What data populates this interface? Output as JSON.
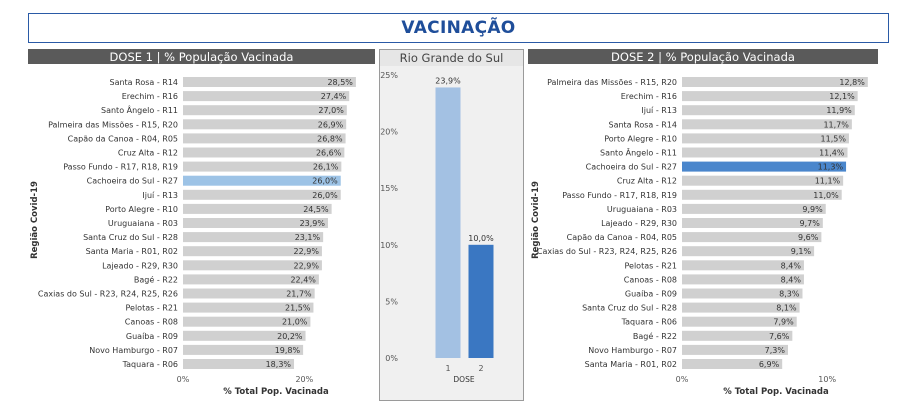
{
  "page_title": "VACINAÇÃO",
  "colors": {
    "bar": "#d0d0d0",
    "highlight": "#9dc3e6",
    "highlight2": "#4a86cc",
    "dose1": "#a3c1e3",
    "dose2": "#3a77c2",
    "header_bg": "#5a5a5a",
    "title": "#1f4e9a"
  },
  "left_header": "DOSE 1 | % População Vacinada",
  "middle_header": "Rio Grande do Sul",
  "right_header": "DOSE 2 | % População Vacinada",
  "chart_data": [
    {
      "type": "bar",
      "orientation": "horizontal",
      "title": "DOSE 1 | % População Vacinada",
      "ylabel": "Região Covid-19",
      "xlabel": "% Total Pop. Vacinada",
      "xlim": [
        0,
        30
      ],
      "x_ticks": [
        "0%",
        "20%"
      ],
      "highlight": "Cachoeira do Sul - R27",
      "categories": [
        "Santa Rosa - R14",
        "Erechim - R16",
        "Santo Ângelo - R11",
        "Palmeira das Missões - R15, R20",
        "Capão da Canoa - R04, R05",
        "Cruz Alta - R12",
        "Passo Fundo - R17, R18, R19",
        "Cachoeira do Sul - R27",
        "Ijuí - R13",
        "Porto Alegre - R10",
        "Uruguaiana - R03",
        "Santa Cruz do Sul - R28",
        "Santa Maria - R01, R02",
        "Lajeado - R29, R30",
        "Bagé - R22",
        "Caxias do Sul - R23, R24, R25, R26",
        "Pelotas - R21",
        "Canoas - R08",
        "Guaíba - R09",
        "Novo Hamburgo - R07",
        "Taquara - R06"
      ],
      "values": [
        28.5,
        27.4,
        27.0,
        26.9,
        26.8,
        26.6,
        26.1,
        26.0,
        26.0,
        24.5,
        23.9,
        23.1,
        22.9,
        22.9,
        22.4,
        21.7,
        21.5,
        21.0,
        20.2,
        19.8,
        18.3
      ],
      "labels": [
        "28,5%",
        "27,4%",
        "27,0%",
        "26,9%",
        "26,8%",
        "26,6%",
        "26,1%",
        "26,0%",
        "26,0%",
        "24,5%",
        "23,9%",
        "23,1%",
        "22,9%",
        "22,9%",
        "22,4%",
        "21,7%",
        "21,5%",
        "21,0%",
        "20,2%",
        "19,8%",
        "18,3%"
      ]
    },
    {
      "type": "bar",
      "orientation": "vertical",
      "title": "Rio Grande do Sul",
      "xlabel": "DOSE",
      "ylim": [
        0,
        25
      ],
      "y_ticks": [
        "0%",
        "5%",
        "10%",
        "15%",
        "20%",
        "25%"
      ],
      "categories": [
        "1",
        "2"
      ],
      "values": [
        23.9,
        10.0
      ],
      "labels": [
        "23,9%",
        "10,0%"
      ]
    },
    {
      "type": "bar",
      "orientation": "horizontal",
      "title": "DOSE 2 | % População Vacinada",
      "ylabel": "Região Covid-19",
      "xlabel": "% Total Pop. Vacinada",
      "xlim": [
        0,
        13.5
      ],
      "x_ticks": [
        "0%",
        "10%"
      ],
      "highlight": "Cachoeira do Sul - R27",
      "categories": [
        "Palmeira das Missões - R15, R20",
        "Erechim - R16",
        "Ijuí - R13",
        "Santa Rosa - R14",
        "Porto Alegre - R10",
        "Santo Ângelo - R11",
        "Cachoeira do Sul - R27",
        "Cruz Alta - R12",
        "Passo Fundo - R17, R18, R19",
        "Uruguaiana - R03",
        "Lajeado - R29, R30",
        "Capão da Canoa - R04, R05",
        "Caxias do Sul - R23, R24, R25, R26",
        "Pelotas - R21",
        "Canoas - R08",
        "Guaíba - R09",
        "Santa Cruz do Sul - R28",
        "Taquara - R06",
        "Bagé - R22",
        "Novo Hamburgo - R07",
        "Santa Maria - R01, R02"
      ],
      "values": [
        12.8,
        12.1,
        11.9,
        11.7,
        11.5,
        11.4,
        11.3,
        11.1,
        11.0,
        9.9,
        9.7,
        9.6,
        9.1,
        8.4,
        8.4,
        8.3,
        8.1,
        7.9,
        7.6,
        7.3,
        6.9
      ],
      "labels": [
        "12,8%",
        "12,1%",
        "11,9%",
        "11,7%",
        "11,5%",
        "11,4%",
        "11,3%",
        "11,1%",
        "11,0%",
        "9,9%",
        "9,7%",
        "9,6%",
        "9,1%",
        "8,4%",
        "8,4%",
        "8,3%",
        "8,1%",
        "7,9%",
        "7,6%",
        "7,3%",
        "6,9%"
      ]
    }
  ]
}
